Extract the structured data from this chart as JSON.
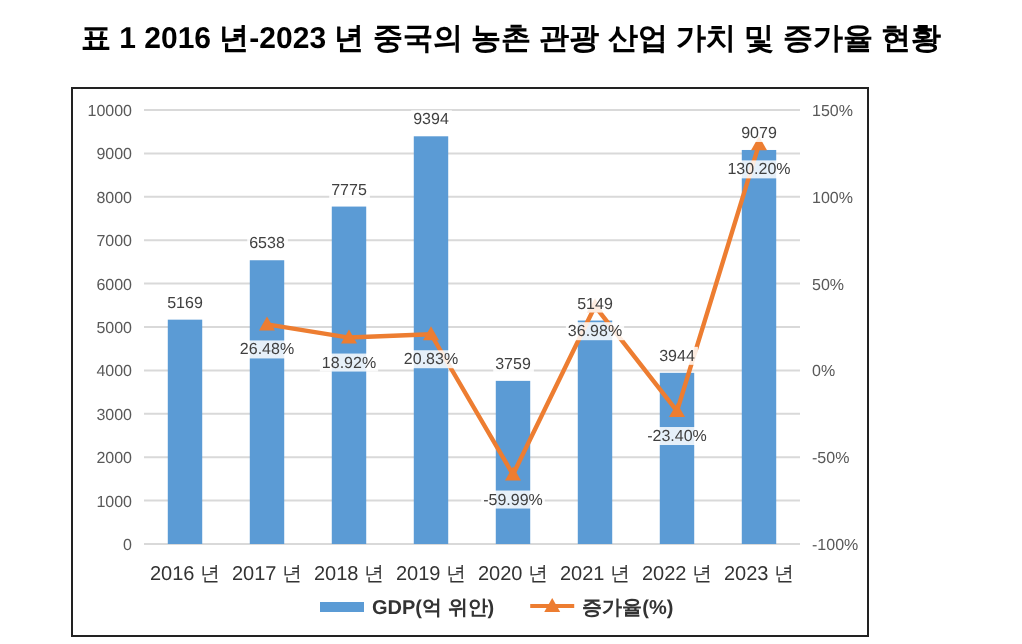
{
  "chart_data": {
    "type": "bar",
    "title": "표 1 2016 년-2023 년 중국의 농촌 관광 산업 가치 및 증가율 현황",
    "categories": [
      "2016 년",
      "2017 년",
      "2018 년",
      "2019 년",
      "2020 년",
      "2021 년",
      "2022 년",
      "2023 년"
    ],
    "series": [
      {
        "name": "GDP(억 위안)",
        "color": "#5b9bd5",
        "values": [
          5169,
          6538,
          7775,
          9394,
          3759,
          5149,
          3944,
          9079
        ],
        "value_labels": [
          "5169",
          "6538",
          "7775",
          "9394",
          "3759",
          "5149",
          "3944",
          "9079"
        ]
      },
      {
        "name": "증가율(%)",
        "type": "line",
        "axis": "y2",
        "color": "#ed7d31",
        "marker": "triangle",
        "values": [
          null,
          26.48,
          18.92,
          20.83,
          -59.99,
          36.98,
          -23.4,
          130.2
        ],
        "value_labels": [
          null,
          "26.48%",
          "18.92%",
          "20.83%",
          "-59.99%",
          "36.98%",
          "-23.40%",
          "130.20%"
        ]
      }
    ],
    "ylim": [
      0,
      10000
    ],
    "yticks": [
      0,
      1000,
      2000,
      3000,
      4000,
      5000,
      6000,
      7000,
      8000,
      9000,
      10000
    ],
    "y2lim": [
      -100,
      150
    ],
    "y2ticks": [
      {
        "value": -100,
        "label": "-100%"
      },
      {
        "value": -50,
        "label": "-50%"
      },
      {
        "value": 0,
        "label": "0%"
      },
      {
        "value": 50,
        "label": "50%"
      },
      {
        "value": 100,
        "label": "100%"
      },
      {
        "value": 150,
        "label": "150%"
      }
    ],
    "grid": "y",
    "legend": "bottom"
  }
}
